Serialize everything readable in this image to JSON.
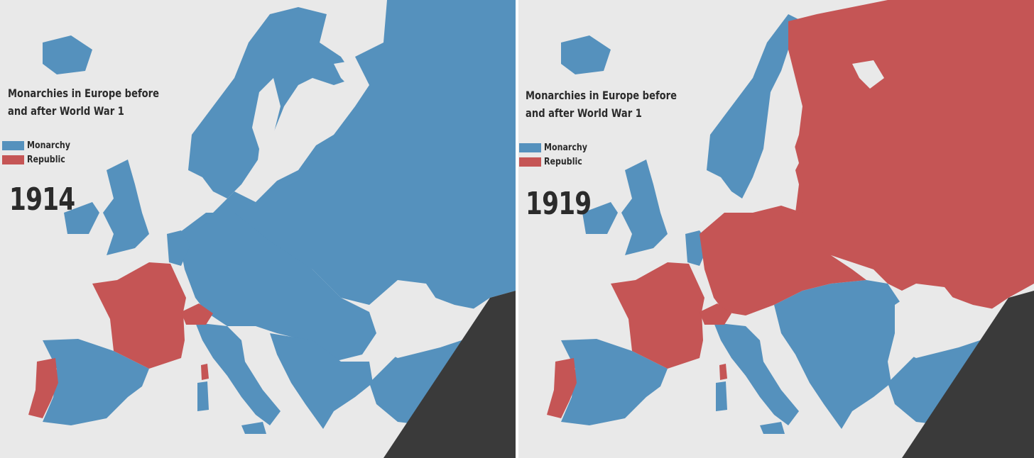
{
  "colors": {
    "monarchy": "#5591bd",
    "republic": "#c55555",
    "sea": "#e9e9e9",
    "outside": "#3a3a3a",
    "text": "#2b2b2b"
  },
  "panels": [
    {
      "title": "Monarchies in Europe before and after World War 1",
      "year": "1914",
      "legend": [
        {
          "label": "Monarchy",
          "color": "#5591bd"
        },
        {
          "label": "Republic",
          "color": "#c55555"
        }
      ],
      "republics": [
        "France",
        "Switzerland",
        "Portugal",
        "Corsica"
      ]
    },
    {
      "title": "Monarchies in Europe before and after World War 1",
      "year": "1919",
      "legend": [
        {
          "label": "Monarchy",
          "color": "#5591bd"
        },
        {
          "label": "Republic",
          "color": "#c55555"
        }
      ],
      "republics": [
        "Russia",
        "Finland",
        "Estonia",
        "Latvia",
        "Lithuania",
        "Poland",
        "Germany",
        "Czechoslovakia",
        "Austria",
        "Switzerland",
        "France",
        "Portugal",
        "Corsica"
      ]
    }
  ]
}
